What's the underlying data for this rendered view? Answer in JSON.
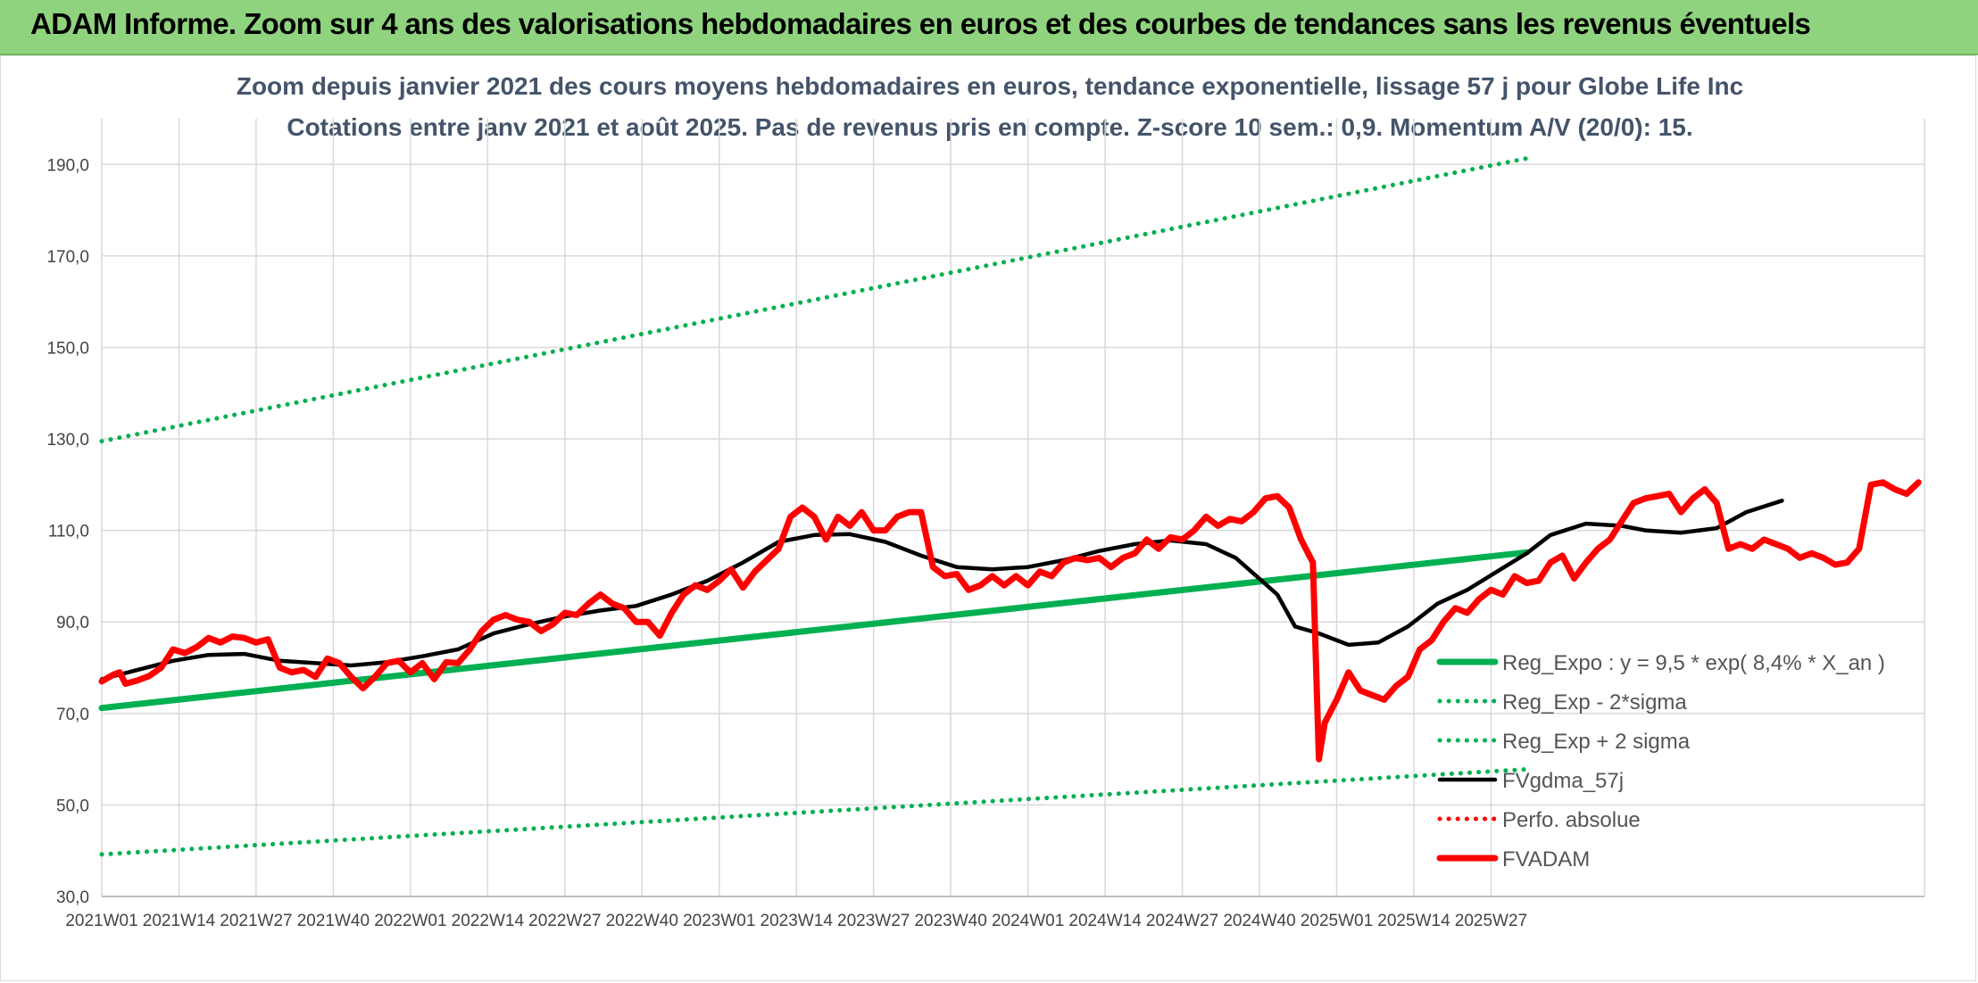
{
  "banner": {
    "title": "ADAM Informe. Zoom sur 4 ans des valorisations hebdomadaires en euros et des courbes de tendances sans les revenus éventuels"
  },
  "colors": {
    "banner": "#8fd37e",
    "trend": "#00b050",
    "price": "#ff0000",
    "smooth": "#000000",
    "grid": "#d9d9d9"
  },
  "chart_data": {
    "type": "line",
    "title": "Zoom depuis janvier 2021 des cours moyens hebdomadaires en euros, tendance exponentielle, lissage 57 j pour Globe Life Inc",
    "subtitle": "Cotations entre janv 2021 et août 2025. Pas de revenus pris en compte. Z-score 10 sem.: 0,9. Momentum A/V (20/0): 15.",
    "ylim": [
      30,
      190
    ],
    "y_ticks": [
      "30,0",
      "50,0",
      "70,0",
      "90,0",
      "110,0",
      "130,0",
      "150,0",
      "170,0",
      "190,0"
    ],
    "x_ticks": [
      "2021W01",
      "2021W14",
      "2021W27",
      "2021W40",
      "2022W01",
      "2022W14",
      "2022W27",
      "2022W40",
      "2023W01",
      "2023W14",
      "2023W27",
      "2023W40",
      "2024W01",
      "2024W14",
      "2024W27",
      "2024W40",
      "2025W01",
      "2025W14",
      "2025W27"
    ],
    "legend_position": "right",
    "grid": "vertical-and-horizontal",
    "series": [
      {
        "name": "Reg_Expo : y = 9,5 * exp( 8,4% *  X_an )",
        "style": "solid-thick",
        "color": "#00b050",
        "points": [
          [
            0,
            71.2
          ],
          [
            240,
            105.2
          ]
        ]
      },
      {
        "name": "Reg_Exp - 2*sigma",
        "style": "dotted",
        "color": "#00b050",
        "points": [
          [
            0,
            39.2
          ],
          [
            240,
            57.8
          ]
        ]
      },
      {
        "name": "Reg_Exp + 2 sigma",
        "style": "dotted",
        "color": "#00b050",
        "points": [
          [
            0,
            129.5
          ],
          [
            240,
            191.3
          ]
        ]
      },
      {
        "name": "FVgdma_57j",
        "style": "solid",
        "color": "#000000",
        "points": [
          [
            0,
            77.5
          ],
          [
            6,
            79.5
          ],
          [
            12,
            81.5
          ],
          [
            18,
            82.8
          ],
          [
            24,
            83
          ],
          [
            30,
            81.5
          ],
          [
            36,
            81
          ],
          [
            42,
            80.5
          ],
          [
            48,
            81.2
          ],
          [
            54,
            82.5
          ],
          [
            60,
            84
          ],
          [
            66,
            87.5
          ],
          [
            72,
            89.5
          ],
          [
            78,
            91.2
          ],
          [
            84,
            92.5
          ],
          [
            90,
            93.5
          ],
          [
            96,
            96
          ],
          [
            102,
            99
          ],
          [
            108,
            103
          ],
          [
            114,
            107.5
          ],
          [
            120,
            109
          ],
          [
            126,
            109.2
          ],
          [
            132,
            107.5
          ],
          [
            138,
            104.5
          ],
          [
            144,
            102
          ],
          [
            150,
            101.5
          ],
          [
            156,
            102
          ],
          [
            162,
            103.5
          ],
          [
            168,
            105.5
          ],
          [
            174,
            107
          ],
          [
            180,
            107.8
          ],
          [
            186,
            107
          ],
          [
            191,
            104
          ],
          [
            198,
            96
          ],
          [
            201,
            89
          ],
          [
            205,
            87.5
          ],
          [
            210,
            85
          ],
          [
            215,
            85.5
          ],
          [
            220,
            89
          ],
          [
            225,
            94
          ],
          [
            230,
            97
          ],
          [
            235,
            101
          ],
          [
            240,
            105
          ],
          [
            244,
            109
          ],
          [
            250,
            111.5
          ],
          [
            256,
            111
          ],
          [
            260,
            110
          ],
          [
            266,
            109.5
          ],
          [
            272,
            110.5
          ],
          [
            277,
            114
          ],
          [
            283,
            116.5
          ]
        ]
      },
      {
        "name": "Perfo. absolue",
        "style": "dotted",
        "color": "#ff0000",
        "points": []
      },
      {
        "name": "FVADAM",
        "style": "solid-thick",
        "color": "#ff0000",
        "points": [
          [
            0,
            77
          ],
          [
            2,
            78.5
          ],
          [
            3,
            79
          ],
          [
            4,
            76.5
          ],
          [
            6,
            77.2
          ],
          [
            8,
            78.2
          ],
          [
            10,
            80
          ],
          [
            12,
            84
          ],
          [
            14,
            83.2
          ],
          [
            16,
            84.5
          ],
          [
            18,
            86.5
          ],
          [
            20,
            85.5
          ],
          [
            22,
            86.8
          ],
          [
            24,
            86.5
          ],
          [
            26,
            85.5
          ],
          [
            28,
            86.2
          ],
          [
            30,
            80
          ],
          [
            32,
            79
          ],
          [
            34,
            79.5
          ],
          [
            36,
            78
          ],
          [
            38,
            82
          ],
          [
            40,
            81
          ],
          [
            42,
            78
          ],
          [
            44,
            75.5
          ],
          [
            46,
            78
          ],
          [
            48,
            81
          ],
          [
            50,
            81.5
          ],
          [
            52,
            79
          ],
          [
            54,
            81
          ],
          [
            56,
            77.5
          ],
          [
            58,
            81.2
          ],
          [
            60,
            81
          ],
          [
            62,
            84
          ],
          [
            64,
            88
          ],
          [
            66,
            90.5
          ],
          [
            68,
            91.5
          ],
          [
            70,
            90.5
          ],
          [
            72,
            90
          ],
          [
            74,
            88
          ],
          [
            76,
            89.5
          ],
          [
            78,
            92
          ],
          [
            80,
            91.5
          ],
          [
            82,
            94
          ],
          [
            84,
            96
          ],
          [
            86,
            94
          ],
          [
            88,
            93
          ],
          [
            90,
            90
          ],
          [
            92,
            90
          ],
          [
            94,
            87
          ],
          [
            96,
            92
          ],
          [
            98,
            96
          ],
          [
            100,
            98
          ],
          [
            102,
            97
          ],
          [
            104,
            99
          ],
          [
            106,
            101.5
          ],
          [
            108,
            97.5
          ],
          [
            110,
            101
          ],
          [
            112,
            103.5
          ],
          [
            114,
            106
          ],
          [
            116,
            113
          ],
          [
            118,
            115
          ],
          [
            120,
            113
          ],
          [
            122,
            108
          ],
          [
            124,
            113
          ],
          [
            126,
            111
          ],
          [
            128,
            114
          ],
          [
            130,
            110
          ],
          [
            132,
            110
          ],
          [
            134,
            113
          ],
          [
            136,
            114
          ],
          [
            138,
            114
          ],
          [
            140,
            102
          ],
          [
            142,
            100
          ],
          [
            144,
            100.5
          ],
          [
            146,
            97
          ],
          [
            148,
            98
          ],
          [
            150,
            100
          ],
          [
            152,
            98
          ],
          [
            154,
            100
          ],
          [
            156,
            98
          ],
          [
            158,
            101
          ],
          [
            160,
            100
          ],
          [
            162,
            103
          ],
          [
            164,
            104
          ],
          [
            166,
            103.5
          ],
          [
            168,
            104
          ],
          [
            170,
            102
          ],
          [
            172,
            104
          ],
          [
            174,
            105
          ],
          [
            176,
            108
          ],
          [
            178,
            106
          ],
          [
            180,
            108.5
          ],
          [
            182,
            108
          ],
          [
            184,
            110
          ],
          [
            186,
            113
          ],
          [
            188,
            111
          ],
          [
            190,
            112.5
          ],
          [
            192,
            112
          ],
          [
            194,
            114
          ],
          [
            196,
            117
          ],
          [
            198,
            117.5
          ],
          [
            200,
            115
          ],
          [
            202,
            108
          ],
          [
            204,
            103
          ],
          [
            205,
            60
          ],
          [
            206,
            68
          ],
          [
            208,
            73
          ],
          [
            210,
            79
          ],
          [
            212,
            75
          ],
          [
            214,
            74
          ],
          [
            216,
            73
          ],
          [
            218,
            76
          ],
          [
            220,
            78
          ],
          [
            222,
            84
          ],
          [
            224,
            86
          ],
          [
            226,
            90
          ],
          [
            228,
            93
          ],
          [
            230,
            92
          ],
          [
            232,
            95
          ],
          [
            234,
            97
          ],
          [
            236,
            96
          ],
          [
            238,
            100
          ],
          [
            240,
            98.5
          ],
          [
            242,
            99
          ],
          [
            244,
            103
          ],
          [
            246,
            104.5
          ],
          [
            248,
            99.5
          ],
          [
            250,
            103
          ],
          [
            252,
            106
          ],
          [
            254,
            108
          ],
          [
            256,
            112
          ],
          [
            258,
            116
          ],
          [
            260,
            117
          ],
          [
            262,
            117.5
          ],
          [
            264,
            118
          ],
          [
            266,
            114
          ],
          [
            268,
            117
          ],
          [
            270,
            119
          ],
          [
            272,
            116
          ],
          [
            274,
            106
          ],
          [
            276,
            107
          ],
          [
            278,
            106
          ],
          [
            280,
            108
          ],
          [
            282,
            107
          ],
          [
            284,
            106
          ],
          [
            286,
            104
          ],
          [
            288,
            105
          ],
          [
            290,
            104
          ],
          [
            292,
            102.5
          ],
          [
            294,
            103
          ],
          [
            296,
            106
          ],
          [
            298,
            120
          ],
          [
            300,
            120.5
          ],
          [
            302,
            119
          ],
          [
            304,
            118
          ],
          [
            306,
            120.5
          ]
        ]
      }
    ]
  }
}
